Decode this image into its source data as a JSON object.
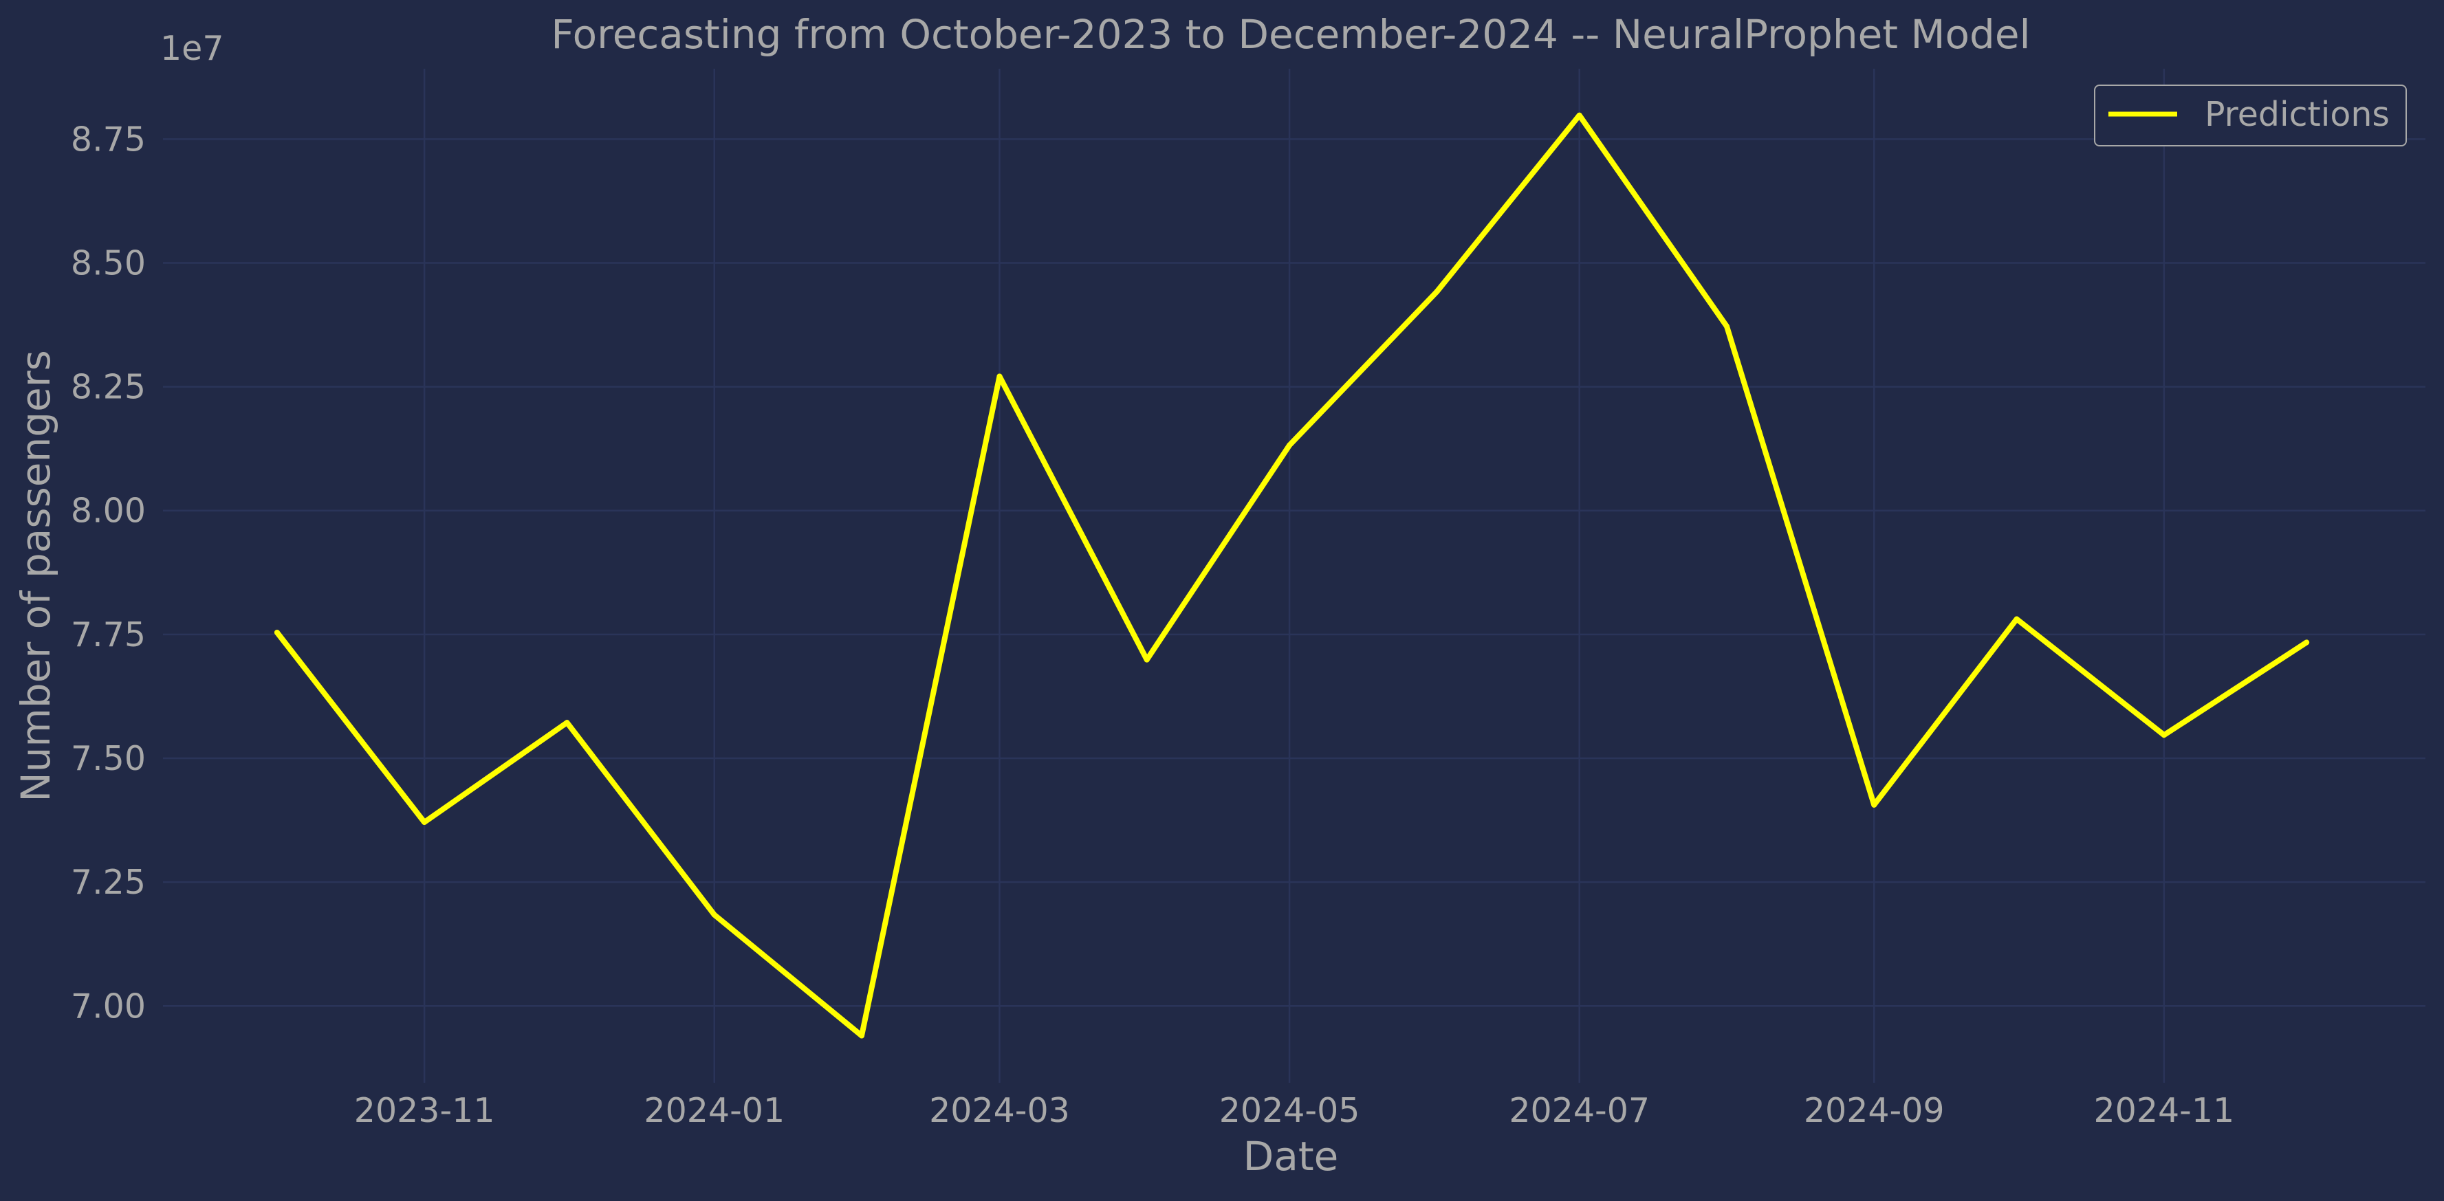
{
  "chart_data": {
    "type": "line",
    "title": "Forecasting from October-2023 to December-2024 -- NeuralProphet Model",
    "xlabel": "Date",
    "ylabel": "Number of passengers",
    "y_offset_label": "1e7",
    "x": [
      "2023-10-01",
      "2023-11-01",
      "2023-12-01",
      "2024-01-01",
      "2024-02-01",
      "2024-03-01",
      "2024-04-01",
      "2024-05-01",
      "2024-06-01",
      "2024-07-01",
      "2024-08-01",
      "2024-09-01",
      "2024-10-01",
      "2024-11-01",
      "2024-12-01"
    ],
    "series": [
      {
        "name": "Predictions",
        "color": "#FFFF00",
        "values": [
          77540000,
          73710000,
          75720000,
          71840000,
          69400000,
          82710000,
          76990000,
          81320000,
          84420000,
          87980000,
          83720000,
          74060000,
          77810000,
          75470000,
          77340000
        ]
      }
    ],
    "x_ticks": [
      {
        "date": "2023-11-01",
        "label": "2023-11"
      },
      {
        "date": "2024-01-01",
        "label": "2024-01"
      },
      {
        "date": "2024-03-01",
        "label": "2024-03"
      },
      {
        "date": "2024-05-01",
        "label": "2024-05"
      },
      {
        "date": "2024-07-01",
        "label": "2024-07"
      },
      {
        "date": "2024-09-01",
        "label": "2024-09"
      },
      {
        "date": "2024-11-01",
        "label": "2024-11"
      }
    ],
    "y_ticks": [
      {
        "value": 70000000,
        "label": "7.00"
      },
      {
        "value": 72500000,
        "label": "7.25"
      },
      {
        "value": 75000000,
        "label": "7.50"
      },
      {
        "value": 77500000,
        "label": "7.75"
      },
      {
        "value": 80000000,
        "label": "8.00"
      },
      {
        "value": 82500000,
        "label": "8.25"
      },
      {
        "value": 85000000,
        "label": "8.50"
      },
      {
        "value": 87500000,
        "label": "8.75"
      }
    ],
    "xlim": [
      "2023-09-07",
      "2024-12-26"
    ],
    "ylim": [
      68450000,
      88920000
    ],
    "grid": true,
    "legend": "top-right",
    "colors": {
      "background": "#212946",
      "grid": "#2A3459",
      "text": "#a8a8a8",
      "legend_border": "#a8a8a8"
    }
  }
}
